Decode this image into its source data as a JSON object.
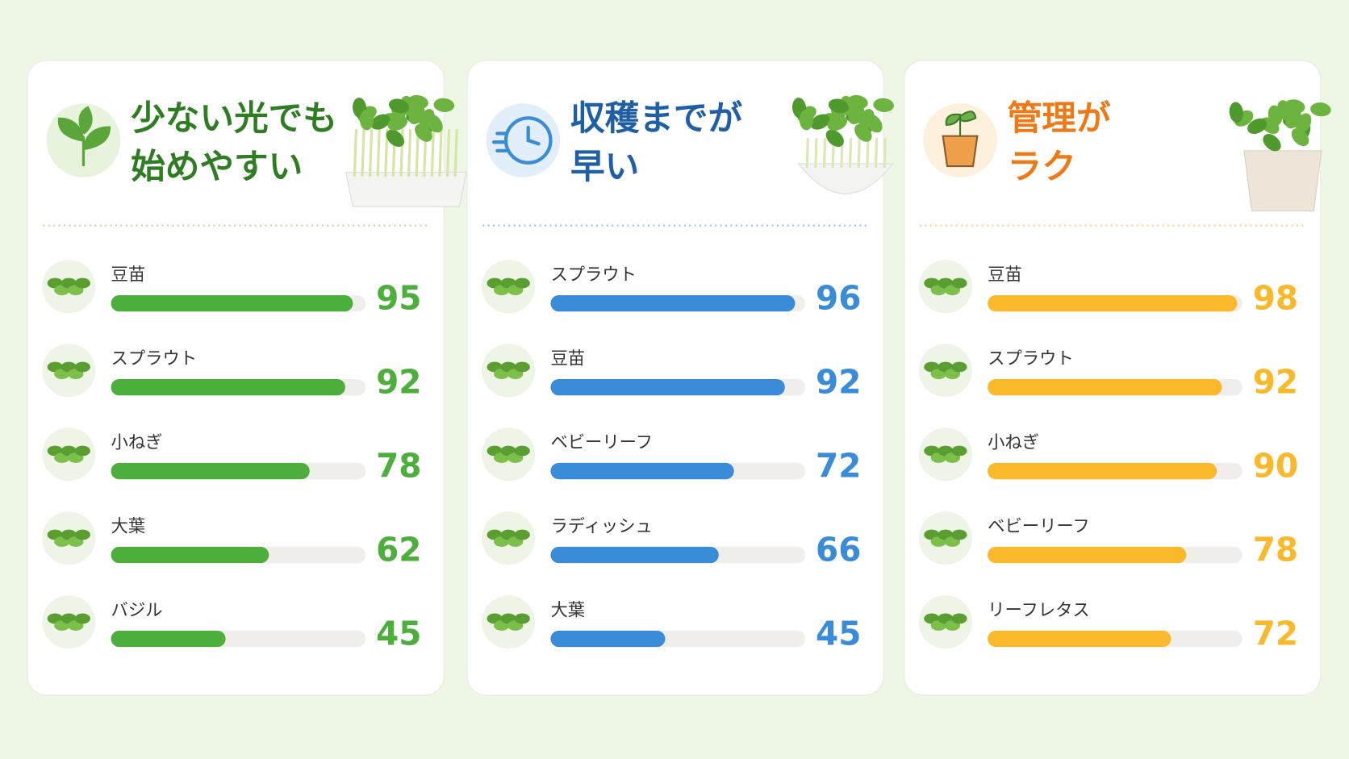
{
  "chart_data": [
    {
      "type": "bar",
      "title": [
        "少ない光でも",
        "始めやすい"
      ],
      "title_color": "#2f7d22",
      "color": "#4caf3c",
      "categories": [
        "豆苗",
        "スプラウト",
        "小ねぎ",
        "大葉",
        "バジル"
      ],
      "values": [
        95,
        92,
        78,
        62,
        45
      ],
      "xlim": [
        0,
        100
      ]
    },
    {
      "type": "bar",
      "title": [
        "収穫までが",
        "早い"
      ],
      "title_color": "#1f5fa6",
      "color": "#3a8bd8",
      "categories": [
        "スプラウト",
        "豆苗",
        "ベビーリーフ",
        "ラディッシュ",
        "大葉"
      ],
      "values": [
        96,
        92,
        72,
        66,
        45
      ],
      "xlim": [
        0,
        100
      ]
    },
    {
      "type": "bar",
      "title": [
        "管理が",
        "ラク"
      ],
      "title_color": "#ee7a17",
      "color": "#f9b92b",
      "categories": [
        "豆苗",
        "スプラウト",
        "小ねぎ",
        "ベビーリーフ",
        "リーフレタス"
      ],
      "values": [
        98,
        92,
        90,
        78,
        72
      ],
      "xlim": [
        0,
        100
      ]
    }
  ]
}
